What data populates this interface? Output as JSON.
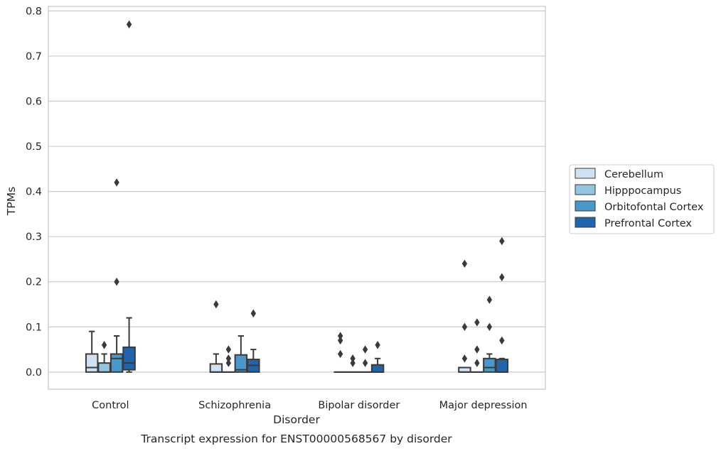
{
  "caption": "Transcript expression for ENST00000568567 by disorder",
  "chart_data": {
    "type": "box",
    "title": "",
    "xlabel": "Disorder",
    "ylabel": "TPMs",
    "categories": [
      "Control",
      "Schizophrenia",
      "Bipolar disorder",
      "Major depression"
    ],
    "ylim": [
      -0.038,
      0.81
    ],
    "yticks": [
      0.0,
      0.1,
      0.2,
      0.3,
      0.4,
      0.5,
      0.6,
      0.7,
      0.8
    ],
    "ytick_labels": [
      "0.0",
      "0.1",
      "0.2",
      "0.3",
      "0.4",
      "0.5",
      "0.6",
      "0.7",
      "0.8"
    ],
    "grid": true,
    "legend_position": "center-right, outside plot",
    "series": [
      {
        "name": "Cerebellum",
        "color": "#d0e1f2",
        "boxes": [
          {
            "q1": 0.0,
            "median": 0.01,
            "q3": 0.04,
            "whisker_low": 0.0,
            "whisker_high": 0.09,
            "outliers": []
          },
          {
            "q1": 0.0,
            "median": 0.0,
            "q3": 0.018,
            "whisker_low": 0.0,
            "whisker_high": 0.04,
            "outliers": [
              0.15
            ]
          },
          {
            "q1": 0.0,
            "median": 0.0,
            "q3": 0.0,
            "whisker_low": 0.0,
            "whisker_high": 0.0,
            "outliers": [
              0.04,
              0.07,
              0.08
            ]
          },
          {
            "q1": 0.0,
            "median": 0.0,
            "q3": 0.01,
            "whisker_low": 0.0,
            "whisker_high": 0.01,
            "outliers": [
              0.03,
              0.1,
              0.24
            ]
          }
        ]
      },
      {
        "name": "Hipppocampus",
        "color": "#94c4df",
        "boxes": [
          {
            "q1": 0.0,
            "median": 0.0,
            "q3": 0.02,
            "whisker_low": 0.0,
            "whisker_high": 0.04,
            "outliers": [
              0.06
            ]
          },
          {
            "q1": 0.0,
            "median": 0.0,
            "q3": 0.0,
            "whisker_low": 0.0,
            "whisker_high": 0.0,
            "outliers": [
              0.02,
              0.03,
              0.05
            ]
          },
          {
            "q1": 0.0,
            "median": 0.0,
            "q3": 0.0,
            "whisker_low": 0.0,
            "whisker_high": 0.0,
            "outliers": [
              0.02,
              0.03
            ]
          },
          {
            "q1": 0.0,
            "median": 0.0,
            "q3": 0.0,
            "whisker_low": 0.0,
            "whisker_high": 0.0,
            "outliers": [
              0.02,
              0.05,
              0.11
            ]
          }
        ]
      },
      {
        "name": "Orbitofontal Cortex",
        "color": "#4a98c9",
        "boxes": [
          {
            "q1": 0.0,
            "median": 0.03,
            "q3": 0.04,
            "whisker_low": 0.0,
            "whisker_high": 0.08,
            "outliers": [
              0.2,
              0.42
            ]
          },
          {
            "q1": 0.0,
            "median": 0.005,
            "q3": 0.038,
            "whisker_low": 0.0,
            "whisker_high": 0.08,
            "outliers": []
          },
          {
            "q1": 0.0,
            "median": 0.0,
            "q3": 0.0,
            "whisker_low": 0.0,
            "whisker_high": 0.0,
            "outliers": [
              0.02,
              0.05
            ]
          },
          {
            "q1": 0.0,
            "median": 0.01,
            "q3": 0.03,
            "whisker_low": 0.0,
            "whisker_high": 0.04,
            "outliers": [
              0.1,
              0.16
            ]
          }
        ]
      },
      {
        "name": "Prefrontal Cortex",
        "color": "#2264ab",
        "boxes": [
          {
            "q1": 0.005,
            "median": 0.02,
            "q3": 0.055,
            "whisker_low": 0.0,
            "whisker_high": 0.12,
            "outliers": [
              0.77
            ]
          },
          {
            "q1": 0.0,
            "median": 0.015,
            "q3": 0.028,
            "whisker_low": 0.0,
            "whisker_high": 0.05,
            "outliers": [
              0.13
            ]
          },
          {
            "q1": 0.0,
            "median": 0.0,
            "q3": 0.016,
            "whisker_low": 0.0,
            "whisker_high": 0.03,
            "outliers": [
              0.06
            ]
          },
          {
            "q1": 0.0,
            "median": 0.0,
            "q3": 0.028,
            "whisker_low": 0.0,
            "whisker_high": 0.03,
            "outliers": [
              0.07,
              0.21,
              0.29
            ]
          }
        ]
      }
    ]
  }
}
